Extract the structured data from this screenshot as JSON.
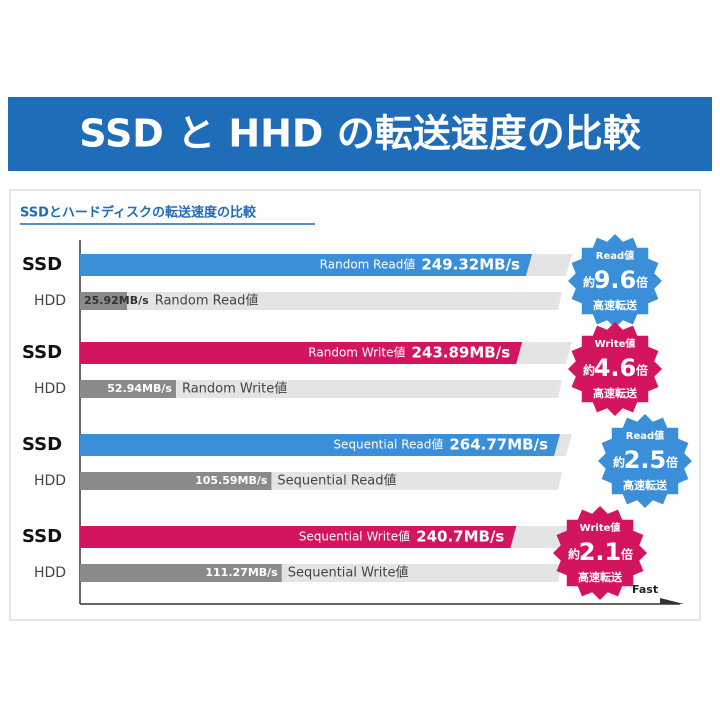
{
  "header": {
    "title": "SSD と HHD の転送速度の比較"
  },
  "chart_data": {
    "type": "bar",
    "title": "SSDとハードディスクの転送速度の比較",
    "categories": [
      "Random Read値",
      "Random Write値",
      "Sequential Read値",
      "Sequential Write値"
    ],
    "series": [
      {
        "name": "SSD",
        "colors": [
          "#3b8fd8",
          "#d3155f",
          "#3b8fd8",
          "#d3155f"
        ],
        "values": [
          249.32,
          243.89,
          264.77,
          240.7
        ],
        "value_labels": [
          "249.32MB/s",
          "243.89MB/s",
          "264.77MB/s",
          "240.7MB/s"
        ]
      },
      {
        "name": "HDD",
        "color": "#8a8a8a",
        "values": [
          25.92,
          52.94,
          105.59,
          111.27
        ],
        "value_labels": [
          "25.92MB/s",
          "52.94MB/s",
          "105.59MB/s",
          "111.27MB/s"
        ]
      }
    ],
    "badges": {
      "headings": [
        "Read値",
        "Write値",
        "Read値",
        "Write値"
      ],
      "ratios": [
        9.6,
        4.6,
        2.5,
        2.1
      ],
      "prefix": "約",
      "suffix": "倍",
      "caption": "高速転送"
    },
    "axis_label": "Fast"
  }
}
